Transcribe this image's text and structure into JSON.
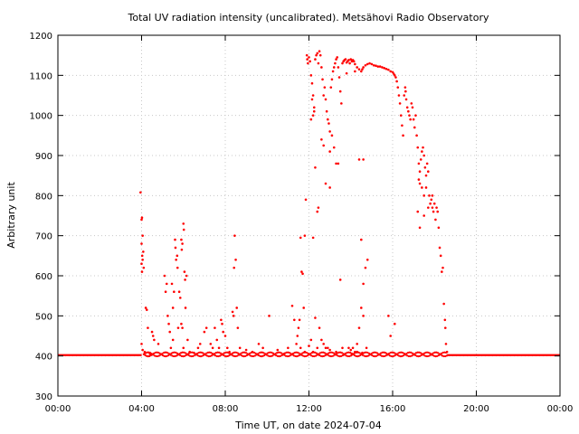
{
  "chart_data": {
    "type": "scatter",
    "title": "Total UV radiation intensity (uncalibrated). Metsähovi Radio Observatory",
    "xlabel": "Time UT, on date 2024-07-04",
    "ylabel": "Arbitrary unit",
    "xlim": [
      0,
      24
    ],
    "ylim": [
      300,
      1200
    ],
    "x_ticks": [
      {
        "value": 0,
        "label": "00:00"
      },
      {
        "value": 4,
        "label": "04:00"
      },
      {
        "value": 8,
        "label": "08:00"
      },
      {
        "value": 12,
        "label": "12:00"
      },
      {
        "value": 16,
        "label": "16:00"
      },
      {
        "value": 20,
        "label": "20:00"
      },
      {
        "value": 24,
        "label": "00:00"
      }
    ],
    "y_ticks": [
      300,
      400,
      500,
      600,
      700,
      800,
      900,
      1000,
      1100,
      1200
    ],
    "grid": true,
    "legend": "none",
    "color": "#ff0000",
    "baseline": {
      "value": 402,
      "from": 0,
      "to": 4.0,
      "resume": 18.6,
      "end": 24
    },
    "points": [
      [
        3.95,
        808
      ],
      [
        4.0,
        740
      ],
      [
        4.02,
        745
      ],
      [
        4.05,
        700
      ],
      [
        4.0,
        680
      ],
      [
        4.03,
        650
      ],
      [
        4.05,
        640
      ],
      [
        4.0,
        630
      ],
      [
        4.08,
        660
      ],
      [
        4.1,
        620
      ],
      [
        4.02,
        610
      ],
      [
        4.0,
        430
      ],
      [
        4.05,
        415
      ],
      [
        4.2,
        520
      ],
      [
        4.25,
        515
      ],
      [
        4.3,
        470
      ],
      [
        4.15,
        410
      ],
      [
        4.4,
        405
      ],
      [
        4.5,
        460
      ],
      [
        4.55,
        450
      ],
      [
        4.6,
        440
      ],
      [
        4.8,
        430
      ],
      [
        5.1,
        600
      ],
      [
        5.15,
        560
      ],
      [
        5.2,
        580
      ],
      [
        5.25,
        500
      ],
      [
        5.3,
        480
      ],
      [
        5.35,
        460
      ],
      [
        5.45,
        580
      ],
      [
        5.5,
        520
      ],
      [
        5.55,
        560
      ],
      [
        5.6,
        690
      ],
      [
        5.62,
        670
      ],
      [
        5.65,
        640
      ],
      [
        5.7,
        650
      ],
      [
        5.72,
        620
      ],
      [
        5.75,
        470
      ],
      [
        5.8,
        560
      ],
      [
        5.85,
        545
      ],
      [
        5.9,
        690
      ],
      [
        5.92,
        665
      ],
      [
        5.95,
        680
      ],
      [
        6.0,
        730
      ],
      [
        6.02,
        715
      ],
      [
        6.05,
        610
      ],
      [
        6.08,
        590
      ],
      [
        6.1,
        520
      ],
      [
        6.15,
        600
      ],
      [
        6.2,
        440
      ],
      [
        5.9,
        480
      ],
      [
        5.95,
        470
      ],
      [
        6.0,
        420
      ],
      [
        5.4,
        420
      ],
      [
        5.5,
        440
      ],
      [
        6.3,
        410
      ],
      [
        6.5,
        408
      ],
      [
        6.7,
        420
      ],
      [
        6.8,
        430
      ],
      [
        7.0,
        460
      ],
      [
        7.1,
        470
      ],
      [
        7.3,
        430
      ],
      [
        7.4,
        420
      ],
      [
        7.5,
        470
      ],
      [
        7.6,
        440
      ],
      [
        7.7,
        420
      ],
      [
        7.8,
        490
      ],
      [
        7.85,
        480
      ],
      [
        7.9,
        460
      ],
      [
        8.0,
        450
      ],
      [
        8.1,
        420
      ],
      [
        8.2,
        410
      ],
      [
        8.35,
        510
      ],
      [
        8.4,
        500
      ],
      [
        8.45,
        700
      ],
      [
        8.5,
        640
      ],
      [
        8.42,
        620
      ],
      [
        8.55,
        520
      ],
      [
        8.6,
        470
      ],
      [
        8.7,
        420
      ],
      [
        9.0,
        415
      ],
      [
        9.3,
        410
      ],
      [
        9.6,
        430
      ],
      [
        9.8,
        420
      ],
      [
        10.1,
        500
      ],
      [
        10.5,
        415
      ],
      [
        10.8,
        405
      ],
      [
        11.0,
        420
      ],
      [
        11.2,
        525
      ],
      [
        11.3,
        490
      ],
      [
        11.4,
        430
      ],
      [
        11.45,
        450
      ],
      [
        11.5,
        470
      ],
      [
        11.55,
        490
      ],
      [
        11.6,
        695
      ],
      [
        11.65,
        610
      ],
      [
        11.7,
        605
      ],
      [
        11.75,
        520
      ],
      [
        11.8,
        700
      ],
      [
        11.85,
        790
      ],
      [
        11.9,
        1150
      ],
      [
        11.92,
        1140
      ],
      [
        11.95,
        1130
      ],
      [
        12.0,
        1145
      ],
      [
        12.05,
        1135
      ],
      [
        12.1,
        1100
      ],
      [
        12.15,
        1080
      ],
      [
        12.2,
        1050
      ],
      [
        12.25,
        1020
      ],
      [
        12.3,
        1140
      ],
      [
        12.35,
        1150
      ],
      [
        12.4,
        1155
      ],
      [
        12.45,
        1130
      ],
      [
        12.5,
        1160
      ],
      [
        12.55,
        1150
      ],
      [
        12.6,
        1120
      ],
      [
        12.65,
        1090
      ],
      [
        12.7,
        1050
      ],
      [
        12.75,
        1070
      ],
      [
        12.8,
        1040
      ],
      [
        12.85,
        1010
      ],
      [
        12.9,
        990
      ],
      [
        12.95,
        980
      ],
      [
        13.0,
        960
      ],
      [
        13.05,
        1070
      ],
      [
        13.1,
        1090
      ],
      [
        13.15,
        1110
      ],
      [
        13.2,
        1120
      ],
      [
        13.25,
        1130
      ],
      [
        13.3,
        1140
      ],
      [
        13.35,
        1145
      ],
      [
        13.4,
        1120
      ],
      [
        13.45,
        1095
      ],
      [
        13.5,
        1060
      ],
      [
        13.55,
        1030
      ],
      [
        12.3,
        870
      ],
      [
        12.4,
        760
      ],
      [
        12.45,
        770
      ],
      [
        12.6,
        940
      ],
      [
        12.7,
        925
      ],
      [
        12.8,
        830
      ],
      [
        13.0,
        910
      ],
      [
        12.2,
        695
      ],
      [
        12.1,
        990
      ],
      [
        12.15,
        1040
      ],
      [
        12.2,
        1000
      ],
      [
        12.25,
        1010
      ],
      [
        13.6,
        1130
      ],
      [
        13.65,
        1135
      ],
      [
        13.7,
        1138
      ],
      [
        13.75,
        1140
      ],
      [
        13.8,
        1132
      ],
      [
        13.85,
        1135
      ],
      [
        13.9,
        1138
      ],
      [
        13.95,
        1130
      ],
      [
        14.0,
        1140
      ],
      [
        14.05,
        1135
      ],
      [
        14.1,
        1138
      ],
      [
        14.15,
        1135
      ],
      [
        14.2,
        1128
      ],
      [
        14.3,
        1120
      ],
      [
        14.4,
        1115
      ],
      [
        14.5,
        1110
      ],
      [
        14.55,
        1115
      ],
      [
        14.6,
        1120
      ],
      [
        14.7,
        1125
      ],
      [
        14.8,
        1128
      ],
      [
        14.9,
        1130
      ],
      [
        15.0,
        1128
      ],
      [
        15.1,
        1125
      ],
      [
        15.2,
        1124
      ],
      [
        15.3,
        1122
      ],
      [
        15.4,
        1122
      ],
      [
        15.5,
        1120
      ],
      [
        15.6,
        1118
      ],
      [
        15.7,
        1116
      ],
      [
        15.8,
        1114
      ],
      [
        15.9,
        1110
      ],
      [
        16.0,
        1108
      ],
      [
        16.05,
        1104
      ],
      [
        16.1,
        1100
      ],
      [
        16.15,
        1095
      ],
      [
        16.2,
        1085
      ],
      [
        16.25,
        1070
      ],
      [
        16.3,
        1050
      ],
      [
        16.35,
        1030
      ],
      [
        16.4,
        1000
      ],
      [
        16.45,
        975
      ],
      [
        16.5,
        950
      ],
      [
        16.55,
        1050
      ],
      [
        16.6,
        1070
      ],
      [
        16.62,
        1060
      ],
      [
        16.65,
        1040
      ],
      [
        16.7,
        1020
      ],
      [
        16.75,
        1010
      ],
      [
        16.8,
        1000
      ],
      [
        16.85,
        990
      ],
      [
        16.9,
        1030
      ],
      [
        16.95,
        1020
      ],
      [
        17.0,
        990
      ],
      [
        17.05,
        970
      ],
      [
        17.1,
        1000
      ],
      [
        17.15,
        950
      ],
      [
        17.2,
        920
      ],
      [
        17.25,
        880
      ],
      [
        17.3,
        860
      ],
      [
        17.35,
        890
      ],
      [
        17.4,
        910
      ],
      [
        17.45,
        920
      ],
      [
        17.5,
        900
      ],
      [
        17.55,
        870
      ],
      [
        17.6,
        850
      ],
      [
        17.65,
        880
      ],
      [
        17.7,
        860
      ],
      [
        17.75,
        800
      ],
      [
        17.8,
        780
      ],
      [
        17.85,
        790
      ],
      [
        17.9,
        770
      ],
      [
        17.95,
        760
      ],
      [
        18.0,
        780
      ],
      [
        18.05,
        740
      ],
      [
        18.1,
        770
      ],
      [
        18.15,
        760
      ],
      [
        17.25,
        840
      ],
      [
        17.3,
        830
      ],
      [
        17.2,
        760
      ],
      [
        17.4,
        820
      ],
      [
        17.5,
        800
      ],
      [
        17.6,
        820
      ],
      [
        17.7,
        770
      ],
      [
        17.9,
        800
      ],
      [
        17.3,
        720
      ],
      [
        17.5,
        750
      ],
      [
        18.2,
        720
      ],
      [
        18.25,
        670
      ],
      [
        18.3,
        650
      ],
      [
        18.35,
        610
      ],
      [
        18.4,
        620
      ],
      [
        18.45,
        530
      ],
      [
        18.5,
        490
      ],
      [
        18.52,
        470
      ],
      [
        18.55,
        430
      ],
      [
        18.6,
        410
      ],
      [
        13.5,
        590
      ],
      [
        13.8,
        1105
      ],
      [
        13.3,
        880
      ],
      [
        13.1,
        950
      ],
      [
        13.2,
        920
      ],
      [
        13.4,
        880
      ],
      [
        13.0,
        820
      ],
      [
        14.4,
        890
      ],
      [
        14.6,
        890
      ],
      [
        14.2,
        1110
      ],
      [
        14.5,
        690
      ],
      [
        14.7,
        620
      ],
      [
        14.8,
        640
      ],
      [
        14.6,
        580
      ],
      [
        14.5,
        520
      ],
      [
        14.6,
        500
      ],
      [
        14.4,
        470
      ],
      [
        14.3,
        430
      ],
      [
        14.2,
        410
      ],
      [
        14.1,
        420
      ],
      [
        14.0,
        415
      ],
      [
        13.9,
        420
      ],
      [
        15.8,
        500
      ],
      [
        15.9,
        450
      ],
      [
        16.1,
        480
      ],
      [
        13.0,
        415
      ],
      [
        12.8,
        420
      ],
      [
        12.6,
        440
      ],
      [
        12.4,
        420
      ],
      [
        12.2,
        410
      ],
      [
        12.0,
        425
      ],
      [
        11.8,
        410
      ],
      [
        11.6,
        420
      ],
      [
        12.1,
        440
      ],
      [
        12.3,
        495
      ],
      [
        12.5,
        470
      ],
      [
        12.7,
        430
      ],
      [
        12.9,
        420
      ],
      [
        13.3,
        410
      ],
      [
        13.6,
        420
      ],
      [
        14.05,
        405
      ],
      [
        14.3,
        410
      ],
      [
        14.55,
        408
      ],
      [
        14.75,
        420
      ]
    ]
  }
}
